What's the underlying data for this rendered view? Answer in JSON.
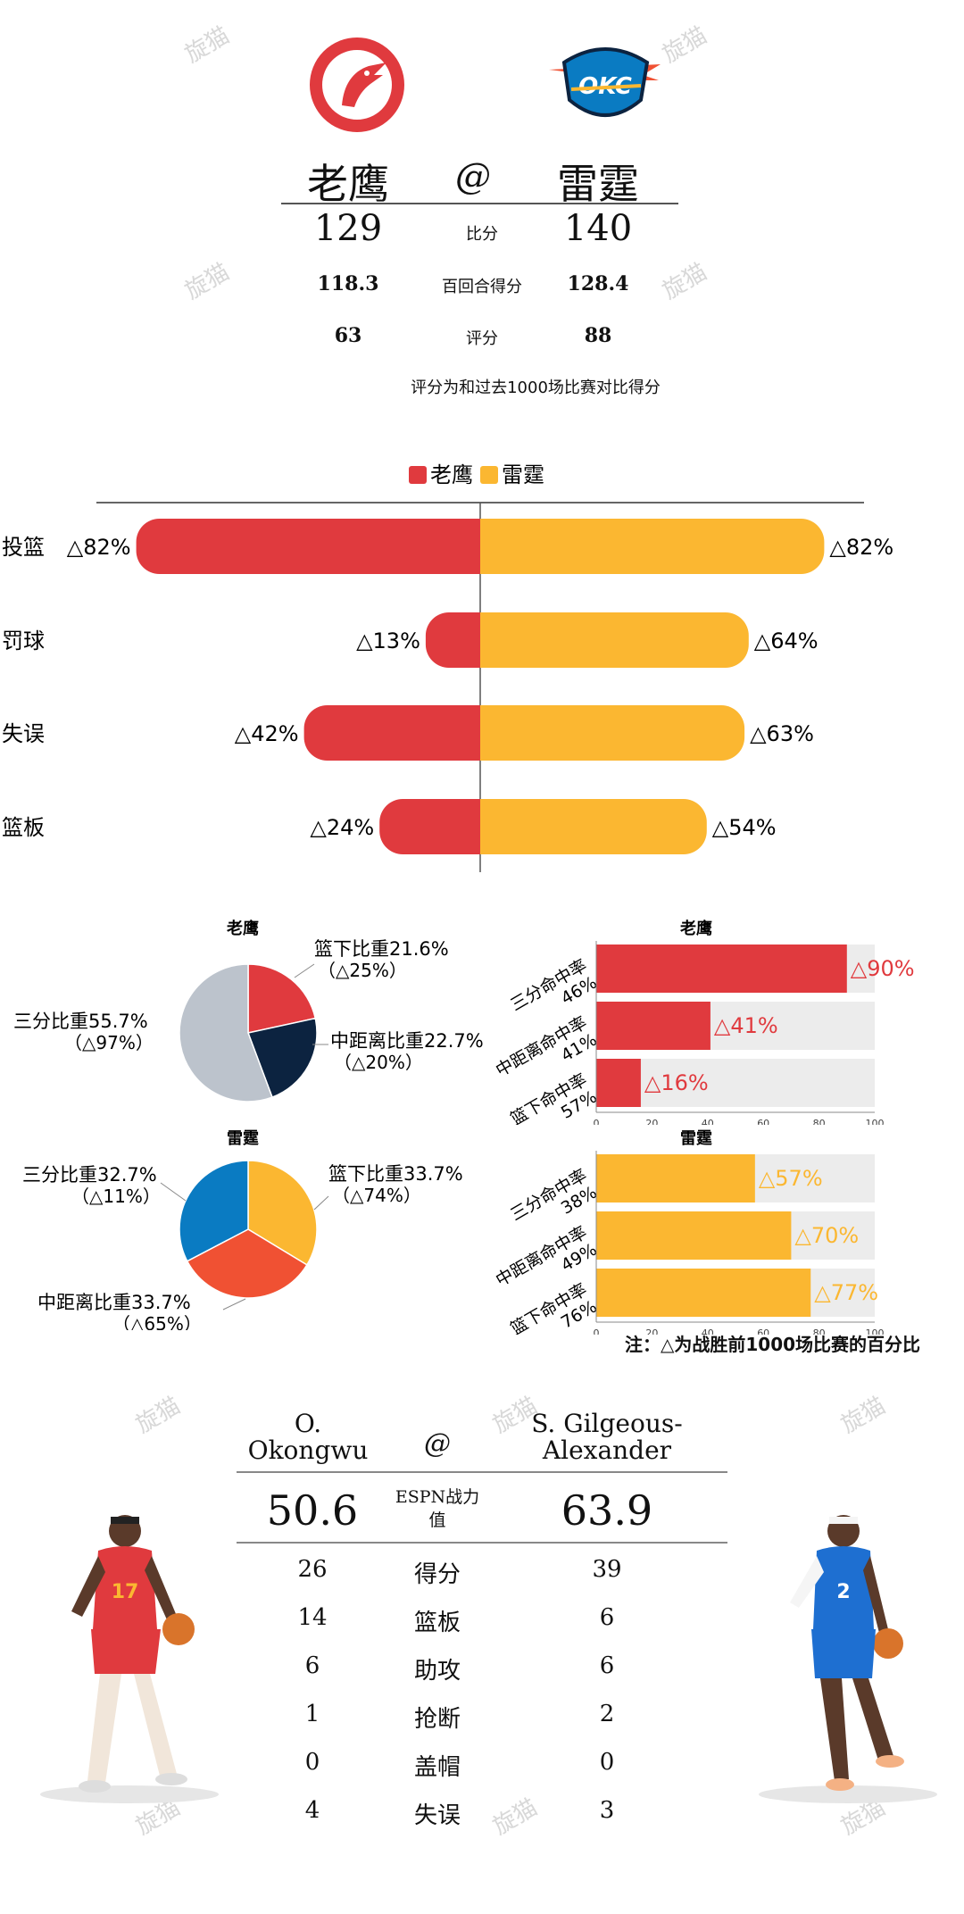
{
  "colors": {
    "hawks": "#e03a3e",
    "thunder": "#fbb731",
    "navy": "#0c2340",
    "gray": "#bcc3cc",
    "blue": "#0a7bc2",
    "orange": "#f05133",
    "track": "#ececec"
  },
  "header": {
    "team_left": "老鹰",
    "at": "@",
    "team_right": "雷霆",
    "rows": [
      {
        "left": "129",
        "label": "比分",
        "right": "140"
      },
      {
        "left": "118.3",
        "label": "百回合得分",
        "right": "128.4"
      },
      {
        "left": "63",
        "label": "评分",
        "right": "88"
      }
    ],
    "note": "评分为和过去1000场比赛对比得分"
  },
  "watermark": "旋猫",
  "chart_data": [
    {
      "type": "bar",
      "orientation": "diverging",
      "legend": [
        "老鹰",
        "雷霆"
      ],
      "legend_position": "top",
      "categories": [
        "投篮",
        "罚球",
        "失误",
        "篮板"
      ],
      "series": [
        {
          "name": "老鹰",
          "values": [
            82,
            13,
            42,
            24
          ],
          "labels": [
            "△82%",
            "△13%",
            "△42%",
            "△24%"
          ]
        },
        {
          "name": "雷霆",
          "values": [
            82,
            64,
            63,
            54
          ],
          "labels": [
            "△82%",
            "△64%",
            "△63%",
            "△54%"
          ]
        }
      ]
    },
    {
      "type": "pie",
      "title": "老鹰",
      "slices": [
        {
          "label": "篮下比重21.6%",
          "sub": "（△25%）",
          "value": 21.6
        },
        {
          "label": "中距离比重22.7%",
          "sub": "（△20%）",
          "value": 22.7
        },
        {
          "label": "三分比重55.7%",
          "sub": "（△97%）",
          "value": 55.7
        }
      ]
    },
    {
      "type": "bar",
      "title": "老鹰",
      "orientation": "horizontal",
      "xlim": [
        0,
        100
      ],
      "xticks": [
        "0",
        "20",
        "40",
        "60",
        "80",
        "100"
      ],
      "categories": [
        "三分命中率 46%",
        "中距离命中率 41%",
        "篮下命中率 57%"
      ],
      "values": [
        90,
        41,
        16
      ],
      "labels": [
        "△90%",
        "△41%",
        "△16%"
      ]
    },
    {
      "type": "pie",
      "title": "雷霆",
      "slices": [
        {
          "label": "篮下比重33.7%",
          "sub": "（△74%）",
          "value": 33.7
        },
        {
          "label": "中距离比重33.7%",
          "sub": "（△65%）",
          "value": 33.7
        },
        {
          "label": "三分比重32.7%",
          "sub": "（△11%）",
          "value": 32.7
        }
      ]
    },
    {
      "type": "bar",
      "title": "雷霆",
      "orientation": "horizontal",
      "xlim": [
        0,
        100
      ],
      "xticks": [
        "0",
        "20",
        "40",
        "60",
        "80",
        "100"
      ],
      "categories": [
        "三分命中率 38%",
        "中距离命中率 49%",
        "篮下命中率 76%"
      ],
      "values": [
        57,
        70,
        77
      ],
      "labels": [
        "△57%",
        "△70%",
        "△77%"
      ]
    }
  ],
  "footnote": "注：△为战胜前1000场比赛的百分比",
  "players": {
    "left_name_line1": "O.",
    "left_name_line2": "Okongwu",
    "at": "@",
    "right_name_line1": "S. Gilgeous-",
    "right_name_line2": "Alexander",
    "espn_label_line1": "ESPN战力",
    "espn_label_line2": "值",
    "espn_left": "50.6",
    "espn_right": "63.9",
    "stats": [
      {
        "left": "26",
        "label": "得分",
        "right": "39"
      },
      {
        "left": "14",
        "label": "篮板",
        "right": "6"
      },
      {
        "left": "6",
        "label": "助攻",
        "right": "6"
      },
      {
        "left": "1",
        "label": "抢断",
        "right": "2"
      },
      {
        "left": "0",
        "label": "盖帽",
        "right": "0"
      },
      {
        "left": "4",
        "label": "失误",
        "right": "3"
      }
    ],
    "left_jersey": "17",
    "right_jersey": "2"
  }
}
